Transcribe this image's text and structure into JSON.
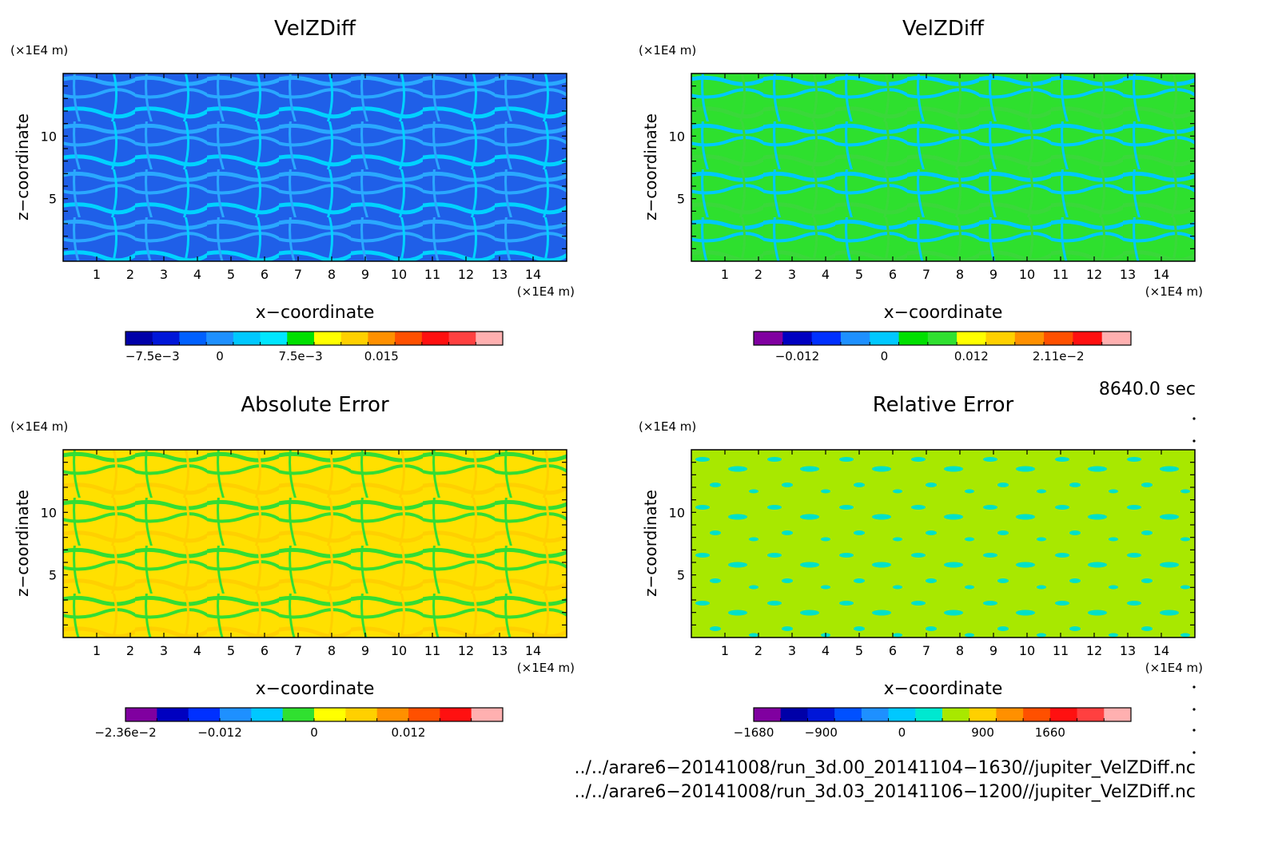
{
  "chart_data": [
    {
      "type": "heatmap",
      "title": "VelZDiff",
      "xlabel": "x−coordinate",
      "ylabel": "z−coordinate",
      "x_unit": "(×1E4 m)",
      "y_unit": "(×1E4 m)",
      "xlim": [
        0,
        15
      ],
      "ylim": [
        0,
        15
      ],
      "x_ticks": [
        "1",
        "2",
        "3",
        "4",
        "5",
        "6",
        "7",
        "8",
        "9",
        "10",
        "11",
        "12",
        "13",
        "14"
      ],
      "y_ticks": [
        "5",
        "10"
      ],
      "pattern": "stripes",
      "palette": [
        "#1f5fe8",
        "#2aa8ff",
        "#00d2ff"
      ],
      "colorbar": {
        "colors": [
          "#0000a8",
          "#0016d8",
          "#0060ff",
          "#1e90ff",
          "#00c8ff",
          "#00e6ff",
          "#00e000",
          "#ffff00",
          "#ffd000",
          "#ff9000",
          "#ff5000",
          "#ff1010",
          "#ff4040",
          "#ffb0b0"
        ],
        "labels": [
          "−7.5e−3",
          "0",
          "7.5e−3",
          "0.015"
        ],
        "label_positions": [
          1,
          3.5,
          6.5,
          9.5
        ]
      }
    },
    {
      "type": "heatmap",
      "title": "VelZDiff",
      "xlabel": "x−coordinate",
      "ylabel": "z−coordinate",
      "x_unit": "(×1E4 m)",
      "y_unit": "(×1E4 m)",
      "xlim": [
        0,
        15
      ],
      "ylim": [
        0,
        15
      ],
      "x_ticks": [
        "1",
        "2",
        "3",
        "4",
        "5",
        "6",
        "7",
        "8",
        "9",
        "10",
        "11",
        "12",
        "13",
        "14"
      ],
      "y_ticks": [
        "5",
        "10"
      ],
      "pattern": "stripes",
      "palette": [
        "#2ee02e",
        "#00c8ff",
        "#3ad83a"
      ],
      "colorbar": {
        "colors": [
          "#8000a0",
          "#0000c0",
          "#0030ff",
          "#1e90ff",
          "#00c8ff",
          "#00e000",
          "#30e030",
          "#ffff00",
          "#ffd000",
          "#ff9000",
          "#ff5000",
          "#ff1010",
          "#ffb0b0"
        ],
        "labels": [
          "−0.012",
          "0",
          "0.012",
          "2.11e−2"
        ],
        "label_positions": [
          1.5,
          4.5,
          7.5,
          10.5
        ]
      }
    },
    {
      "type": "heatmap",
      "title": "Absolute Error",
      "xlabel": "x−coordinate",
      "ylabel": "z−coordinate",
      "x_unit": "(×1E4 m)",
      "y_unit": "(×1E4 m)",
      "xlim": [
        0,
        15
      ],
      "ylim": [
        0,
        15
      ],
      "x_ticks": [
        "1",
        "2",
        "3",
        "4",
        "5",
        "6",
        "7",
        "8",
        "9",
        "10",
        "11",
        "12",
        "13",
        "14"
      ],
      "y_ticks": [
        "5",
        "10"
      ],
      "pattern": "stripes",
      "palette": [
        "#ffe000",
        "#33dd33",
        "#ffd000"
      ],
      "colorbar": {
        "colors": [
          "#8000a0",
          "#0000c0",
          "#0030ff",
          "#1e90ff",
          "#00c8ff",
          "#30e030",
          "#ffff00",
          "#ffd000",
          "#ff9000",
          "#ff5000",
          "#ff1010",
          "#ffb0b0"
        ],
        "labels": [
          "−2.36e−2",
          "−0.012",
          "0",
          "0.012"
        ],
        "label_positions": [
          0,
          3,
          6,
          9
        ]
      }
    },
    {
      "type": "heatmap",
      "title": "Relative Error",
      "xlabel": "x−coordinate",
      "ylabel": "z−coordinate",
      "x_unit": "(×1E4 m)",
      "y_unit": "(×1E4 m)",
      "xlim": [
        0,
        15
      ],
      "ylim": [
        0,
        15
      ],
      "x_ticks": [
        "1",
        "2",
        "3",
        "4",
        "5",
        "6",
        "7",
        "8",
        "9",
        "10",
        "11",
        "12",
        "13",
        "14"
      ],
      "y_ticks": [
        "5",
        "10"
      ],
      "pattern": "blotches",
      "palette": [
        "#a8e800",
        "#00e0c8",
        "#a8e800"
      ],
      "colorbar": {
        "colors": [
          "#8000a0",
          "#0000a8",
          "#0016d8",
          "#0050ff",
          "#1e90ff",
          "#00c8ff",
          "#00e8d0",
          "#a8e800",
          "#ffd000",
          "#ff9000",
          "#ff5000",
          "#ff1010",
          "#ff4040",
          "#ffb0b0"
        ],
        "labels": [
          "−1680",
          "−900",
          "0",
          "900",
          "1660"
        ],
        "label_positions": [
          0,
          2.5,
          5.5,
          8.5,
          11
        ]
      }
    }
  ],
  "time_label": "8640.0 sec",
  "file_paths": [
    "../../arare6−20141008/run_3d.00_20141104−1630//jupiter_VelZDiff.nc",
    "../../arare6−20141008/run_3d.03_20141106−1200//jupiter_VelZDiff.nc"
  ]
}
